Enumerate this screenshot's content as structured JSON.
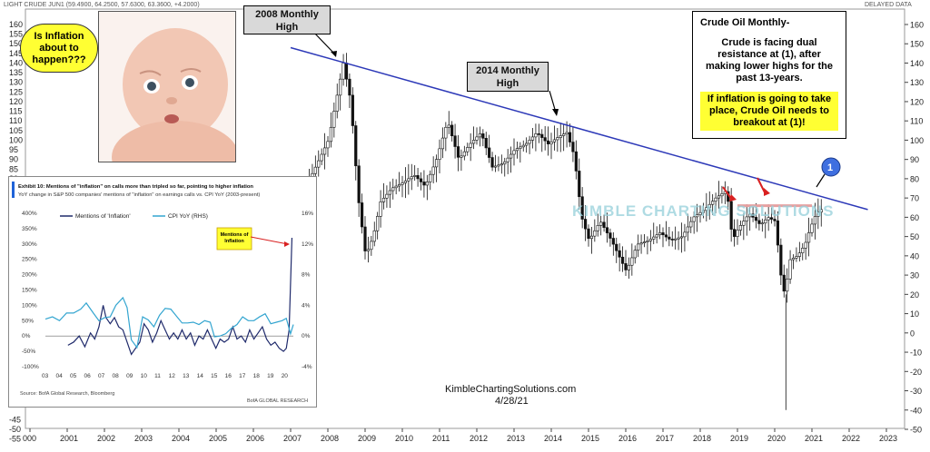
{
  "header": {
    "symbol_label": "LIGHT CRUDE JUN1 (59.4900, 64.2500, 57.6300, 63.3600, +4.2000)",
    "delayed": "DELAYED DATA"
  },
  "chart_data": [
    {
      "type": "line",
      "title": "",
      "x_ticks": [
        "000",
        "2001",
        "2002",
        "2003",
        "2004",
        "2005",
        "2006",
        "2007",
        "2008",
        "2009",
        "2010",
        "2011",
        "2012",
        "2013",
        "2014",
        "2015",
        "2016",
        "2017",
        "2018",
        "2019",
        "2020",
        "2021",
        "2022",
        "2023"
      ],
      "y_ticks": [
        160,
        150,
        140,
        130,
        120,
        110,
        100,
        90,
        80,
        70,
        60,
        50,
        40,
        30,
        20,
        10,
        0,
        -10,
        -20,
        -30,
        -40,
        -50
      ],
      "left_y_ticks": [
        "160",
        "155",
        "150",
        "145",
        "140",
        "135",
        "130",
        "125",
        "120",
        "115",
        "110",
        "105",
        "100",
        "95",
        "90",
        "85",
        "80",
        "75"
      ],
      "left_y_ticks_bottom": [
        "-45",
        "-50",
        "-55"
      ],
      "ylim": [
        -55,
        165
      ],
      "series": [
        {
          "x": [
            2007.0,
            2007.3,
            2007.6,
            2007.9,
            2008.1,
            2008.3,
            2008.5,
            2008.7,
            2008.9,
            2009.1,
            2009.3,
            2009.5,
            2009.8,
            2010.1,
            2010.4,
            2010.7,
            2011.0,
            2011.3,
            2011.6,
            2011.9,
            2012.2,
            2012.5,
            2012.8,
            2013.1,
            2013.4,
            2013.7,
            2014.0,
            2014.3,
            2014.5,
            2014.7,
            2014.9,
            2015.1,
            2015.4,
            2015.7,
            2015.9,
            2016.1,
            2016.4,
            2016.7,
            2017.0,
            2017.3,
            2017.6,
            2017.9,
            2018.2,
            2018.5,
            2018.8,
            2018.95,
            2019.1,
            2019.4,
            2019.7,
            2019.9,
            2020.1,
            2020.25,
            2020.35,
            2020.5,
            2020.7,
            2020.9,
            2021.0,
            2021.15,
            2021.3
          ],
          "y": [
            60,
            65,
            80,
            92,
            100,
            120,
            140,
            120,
            70,
            40,
            50,
            68,
            75,
            78,
            82,
            76,
            90,
            110,
            90,
            98,
            104,
            86,
            88,
            95,
            98,
            104,
            98,
            102,
            104,
            92,
            60,
            48,
            58,
            48,
            40,
            32,
            46,
            48,
            52,
            48,
            50,
            60,
            64,
            70,
            74,
            48,
            54,
            62,
            56,
            60,
            58,
            30,
            20,
            38,
            40,
            46,
            52,
            60,
            64
          ]
        }
      ],
      "trendline": {
        "from": [
          2007.0,
          148
        ],
        "to": [
          2022.5,
          64
        ]
      },
      "resistance_line": {
        "from": [
          2019.0,
          66
        ],
        "to": [
          2021.0,
          66
        ]
      },
      "annotations": [
        "2008 Monthly High",
        "2014 Monthly High",
        "1"
      ]
    },
    {
      "type": "line",
      "title": "Exhibit 10: Mentions of \"inflation\" on calls more than tripled so far, pointing to higher inflation",
      "subtitle": "YoY change in S&P 500 companies' mentions of \"inflation\" on earnings calls vs. CPI YoY (2003-present)",
      "categories": [
        "03",
        "04",
        "05",
        "06",
        "07",
        "08",
        "09",
        "10",
        "11",
        "12",
        "13",
        "14",
        "15",
        "16",
        "17",
        "18",
        "19",
        "20"
      ],
      "y_ticks_left": [
        "400%",
        "350%",
        "300%",
        "250%",
        "200%",
        "150%",
        "100%",
        "50%",
        "0%",
        "-50%",
        "-100%"
      ],
      "y_ticks_right": [
        "16%",
        "12%",
        "8%",
        "4%",
        "0%",
        "-4%"
      ],
      "ylim": [
        -100,
        400
      ],
      "y2lim": [
        -4,
        16
      ],
      "series": [
        {
          "name": "Mentions of 'Inflation'",
          "color": "#1f2a6b",
          "x": [
            2004.6,
            2005.0,
            2005.4,
            2005.8,
            2006.2,
            2006.5,
            2006.8,
            2007.1,
            2007.3,
            2007.6,
            2007.9,
            2008.2,
            2008.5,
            2008.8,
            2009.1,
            2009.4,
            2009.7,
            2010.0,
            2010.3,
            2010.6,
            2010.9,
            2011.2,
            2011.5,
            2011.8,
            2012.1,
            2012.4,
            2012.7,
            2013.0,
            2013.3,
            2013.6,
            2013.9,
            2014.2,
            2014.5,
            2014.8,
            2015.1,
            2015.4,
            2015.7,
            2016.0,
            2016.3,
            2016.6,
            2016.9,
            2017.2,
            2017.5,
            2017.8,
            2018.1,
            2018.4,
            2018.7,
            2019.0,
            2019.3,
            2019.6,
            2019.9,
            2020.1,
            2020.3,
            2020.5
          ],
          "y": [
            -30,
            -20,
            0,
            -35,
            10,
            -10,
            30,
            100,
            60,
            40,
            60,
            30,
            20,
            -20,
            -60,
            -40,
            -20,
            40,
            20,
            -20,
            10,
            50,
            20,
            -10,
            10,
            -10,
            20,
            -10,
            10,
            -30,
            0,
            -10,
            20,
            -10,
            -40,
            -10,
            -20,
            -10,
            30,
            -10,
            0,
            -20,
            20,
            -10,
            10,
            30,
            -10,
            -30,
            -20,
            -40,
            -50,
            -40,
            20,
            320
          ]
        },
        {
          "name": "CPI YoY (RHS)",
          "color": "#33a5d0",
          "x": [
            2003.0,
            2003.5,
            2004.0,
            2004.5,
            2005.0,
            2005.5,
            2005.9,
            2006.4,
            2006.8,
            2007.2,
            2007.6,
            2008.0,
            2008.5,
            2008.8,
            2009.1,
            2009.5,
            2009.9,
            2010.3,
            2010.7,
            2011.1,
            2011.5,
            2011.9,
            2012.3,
            2012.7,
            2013.1,
            2013.5,
            2013.9,
            2014.3,
            2014.7,
            2015.0,
            2015.4,
            2015.8,
            2016.2,
            2016.6,
            2017.0,
            2017.4,
            2017.8,
            2018.2,
            2018.6,
            2019.0,
            2019.4,
            2019.8,
            2020.1,
            2020.4,
            2020.6
          ],
          "y": [
            2.2,
            2.5,
            2.0,
            3.0,
            3.0,
            3.5,
            4.3,
            3.0,
            2.0,
            2.4,
            2.5,
            4.0,
            5.0,
            3.7,
            -0.5,
            -1.5,
            2.5,
            2.1,
            1.2,
            2.7,
            3.6,
            3.5,
            2.6,
            1.7,
            1.7,
            1.8,
            1.5,
            2.0,
            1.8,
            -0.1,
            0.0,
            0.3,
            1.0,
            1.5,
            2.5,
            2.0,
            2.0,
            2.5,
            2.9,
            1.6,
            1.8,
            2.0,
            2.3,
            0.3,
            1.5
          ]
        }
      ],
      "annotation": "Mentions of Inflation",
      "source": "Source: BofA Global Research, Bloomberg",
      "brand": "BofA GLOBAL RESEARCH"
    }
  ],
  "crude_box": {
    "title": "Crude Oil Monthly-",
    "body": "Crude is facing dual resistance at (1), after making lower highs for the past 13-years.",
    "highlight": "If inflation is going to take place, Crude Oil needs to breakout at (1)!"
  },
  "baby_bubble": "Is Inflation about to happen???",
  "watermark": "KIMBLE CHARTING SOLUTIONS",
  "footer": {
    "site": "KimbleChartingSolutions.com",
    "date": "4/28/21"
  },
  "colors": {
    "trendline": "#2d39b8",
    "resistance": "#e7a0a0",
    "highlight": "#ffff33",
    "arrow_red": "#d92020",
    "circle": "#3f6fe0"
  }
}
